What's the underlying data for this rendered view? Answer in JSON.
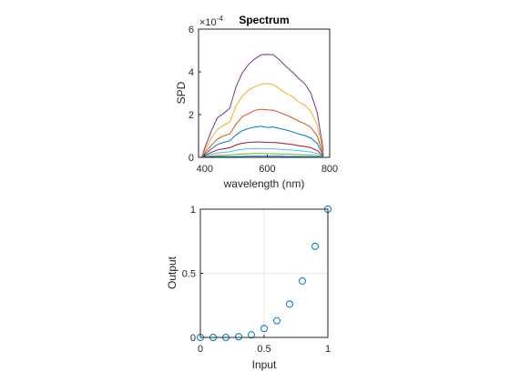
{
  "chart_data": [
    {
      "type": "line",
      "title": "Spectrum",
      "xlabel": "wavelength (nm)",
      "ylabel": "SPD",
      "exponent_label": "×10",
      "exponent_value": "-4",
      "xlim": [
        380,
        800
      ],
      "ylim": [
        0,
        6
      ],
      "xticks": [
        "400",
        "600",
        "800"
      ],
      "yticks": [
        "0",
        "2",
        "4",
        "6"
      ],
      "grid": false,
      "x": [
        390,
        400,
        420,
        440,
        460,
        480,
        500,
        520,
        540,
        560,
        580,
        600,
        620,
        640,
        660,
        680,
        700,
        720,
        740,
        760,
        780
      ],
      "series": [
        {
          "color": "#7E2F8E",
          "values": [
            0.0,
            0.45,
            1.2,
            1.85,
            2.05,
            2.3,
            3.3,
            3.95,
            4.35,
            4.6,
            4.8,
            4.82,
            4.8,
            4.55,
            4.25,
            4.0,
            3.7,
            3.45,
            3.0,
            2.1,
            0.3
          ]
        },
        {
          "color": "#EDB120",
          "values": [
            0.0,
            0.32,
            0.88,
            1.3,
            1.5,
            1.65,
            2.4,
            2.85,
            3.15,
            3.3,
            3.42,
            3.45,
            3.4,
            3.2,
            3.0,
            2.85,
            2.6,
            2.45,
            2.15,
            1.5,
            0.2
          ]
        },
        {
          "color": "#D95319",
          "values": [
            0.0,
            0.22,
            0.55,
            0.85,
            1.0,
            1.1,
            1.55,
            1.9,
            2.05,
            2.2,
            2.25,
            2.22,
            2.2,
            2.1,
            1.98,
            1.85,
            1.7,
            1.58,
            1.4,
            1.0,
            0.12
          ]
        },
        {
          "color": "#0072BD",
          "values": [
            0.0,
            0.15,
            0.38,
            0.6,
            0.7,
            0.78,
            1.05,
            1.25,
            1.35,
            1.42,
            1.45,
            1.4,
            1.42,
            1.35,
            1.28,
            1.2,
            1.1,
            1.02,
            0.9,
            0.65,
            0.08
          ]
        },
        {
          "color": "#A2142F",
          "values": [
            0.0,
            0.1,
            0.22,
            0.35,
            0.4,
            0.45,
            0.58,
            0.66,
            0.7,
            0.72,
            0.72,
            0.7,
            0.7,
            0.67,
            0.64,
            0.6,
            0.55,
            0.51,
            0.45,
            0.32,
            0.04
          ]
        },
        {
          "color": "#4DBEEE",
          "values": [
            0.0,
            0.06,
            0.13,
            0.2,
            0.23,
            0.26,
            0.33,
            0.38,
            0.4,
            0.41,
            0.41,
            0.4,
            0.4,
            0.38,
            0.36,
            0.34,
            0.31,
            0.29,
            0.25,
            0.18,
            0.02
          ]
        },
        {
          "color": "#77AC30",
          "values": [
            0.0,
            0.03,
            0.06,
            0.09,
            0.1,
            0.11,
            0.14,
            0.16,
            0.17,
            0.18,
            0.18,
            0.17,
            0.17,
            0.16,
            0.15,
            0.14,
            0.13,
            0.12,
            0.11,
            0.08,
            0.01
          ]
        },
        {
          "color": "#0072BD",
          "values": [
            0.0,
            0.01,
            0.02,
            0.03,
            0.03,
            0.03,
            0.04,
            0.04,
            0.05,
            0.05,
            0.05,
            0.05,
            0.05,
            0.05,
            0.04,
            0.04,
            0.04,
            0.03,
            0.03,
            0.02,
            0.0
          ]
        }
      ]
    },
    {
      "type": "scatter",
      "xlabel": "Input",
      "ylabel": "Output",
      "xlim": [
        0,
        1
      ],
      "ylim": [
        0,
        1
      ],
      "xticks": [
        "0",
        "0.5",
        "1"
      ],
      "yticks": [
        "0",
        "0.5",
        "1"
      ],
      "grid": true,
      "marker": "circle-open",
      "color": "#0072BD",
      "x": [
        0.0,
        0.1,
        0.2,
        0.3,
        0.4,
        0.5,
        0.6,
        0.7,
        0.8,
        0.9,
        1.0
      ],
      "y": [
        0.0,
        0.0,
        0.0,
        0.005,
        0.02,
        0.07,
        0.13,
        0.26,
        0.44,
        0.71,
        1.0
      ]
    }
  ]
}
